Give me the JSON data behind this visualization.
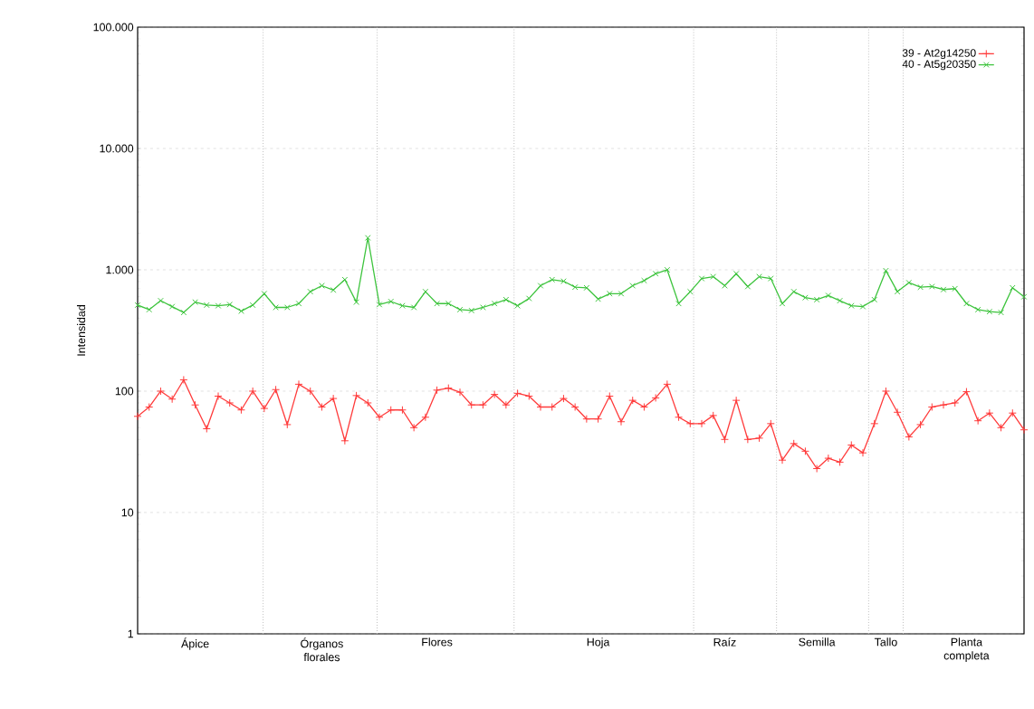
{
  "chart_data": {
    "type": "line",
    "ylabel": "Intensidad",
    "log": "y",
    "grid": "y",
    "legend": "top right",
    "line_style": "solid",
    "categories": [
      null,
      null,
      null,
      null,
      null,
      "Ápice",
      null,
      null,
      null,
      null,
      null,
      null,
      null,
      null,
      null,
      null,
      "Órganos florales",
      null,
      null,
      null,
      null,
      null,
      null,
      null,
      null,
      null,
      "Flores",
      null,
      null,
      null,
      null,
      null,
      null,
      null,
      null,
      null,
      null,
      null,
      null,
      null,
      "Hoja",
      null,
      null,
      null,
      null,
      null,
      null,
      null,
      null,
      null,
      null,
      "Raíz",
      null,
      null,
      null,
      null,
      null,
      null,
      null,
      "Semilla",
      null,
      null,
      null,
      null,
      null,
      "Tallo",
      null,
      null,
      null,
      null,
      null,
      null,
      "Planta completa",
      null,
      null,
      null,
      null,
      null
    ],
    "ylim": [
      1,
      100000
    ],
    "yticks": [
      1,
      10,
      100,
      {
        "value": 1000,
        "label": "1.000"
      },
      {
        "value": 10000,
        "label": "10.000"
      },
      {
        "value": 100000,
        "label": "100.000"
      }
    ],
    "series": [
      {
        "name": "39  -  At2g14250",
        "color": "#ff3b3b",
        "marker": "cross",
        "values": [
          62,
          74,
          100,
          86,
          124,
          77,
          49,
          91,
          80,
          70,
          100,
          72,
          103,
          53,
          114,
          100,
          74,
          87,
          39,
          92,
          80,
          61,
          70,
          70,
          50,
          61,
          102,
          106,
          98,
          77,
          77,
          94,
          77,
          96,
          91,
          74,
          74,
          87,
          74,
          59,
          59,
          91,
          56,
          84,
          74,
          88,
          114,
          61,
          54,
          54,
          63,
          40,
          84,
          40,
          41,
          54,
          27,
          37,
          32,
          23,
          28,
          26,
          36,
          31,
          54,
          100,
          67,
          42,
          53,
          74,
          77,
          80,
          99,
          57,
          66,
          50,
          66,
          48
        ]
      },
      {
        "name": "40  -  At5g20350",
        "color": "#3ec43e",
        "marker": "cross",
        "values": [
          512,
          470,
          557,
          498,
          445,
          542,
          512,
          506,
          517,
          457,
          512,
          636,
          490,
          490,
          527,
          661,
          740,
          681,
          830,
          542,
          1835,
          517,
          548,
          506,
          490,
          661,
          527,
          527,
          470,
          462,
          490,
          527,
          568,
          506,
          581,
          740,
          830,
          806,
          719,
          711,
          574,
          636,
          636,
          740,
          815,
          929,
          1000,
          527,
          661,
          848,
          878,
          740,
          929,
          728,
          878,
          848,
          527,
          661,
          590,
          568,
          614,
          557,
          506,
          498,
          568,
          984,
          661,
          783,
          719,
          728,
          688,
          700,
          527,
          470,
          452,
          445,
          711,
          600
        ]
      }
    ]
  }
}
